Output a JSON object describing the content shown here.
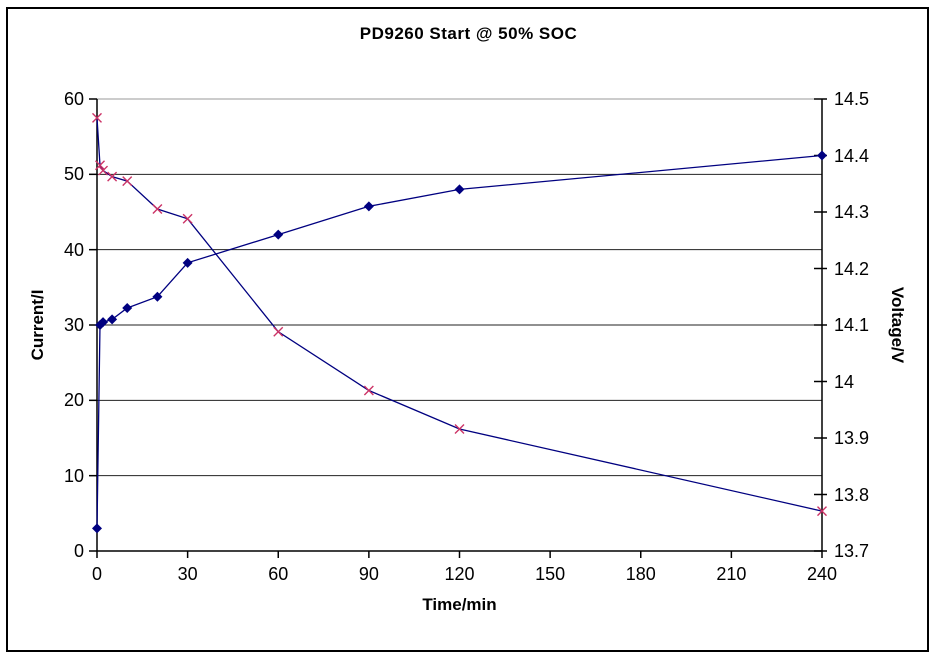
{
  "title": "PD9260 Start @ 50% SOC",
  "colors": {
    "line": "#000080",
    "diamond_marker": "#000080",
    "x_marker": "#cc3366",
    "gridline": "#222222",
    "top_gridline": "#999999",
    "axis": "#000000",
    "background": "#ffffff"
  },
  "chart_data": {
    "type": "line",
    "title": "PD9260 Start @ 50% SOC",
    "xlabel": "Time/min",
    "ylabel_left": "Current/I",
    "ylabel_right": "Voltage/V",
    "xlim": [
      0,
      240
    ],
    "x_ticks": [
      0,
      30,
      60,
      90,
      120,
      150,
      180,
      210,
      240
    ],
    "ylim_left": [
      0,
      60
    ],
    "y_ticks_left": [
      0,
      10,
      20,
      30,
      40,
      50,
      60
    ],
    "ylim_right": [
      13.7,
      14.5
    ],
    "y_ticks_right": [
      "13.7",
      "13.8",
      "13.9",
      "14",
      "14.1",
      "14.2",
      "14.3",
      "14.4",
      "14.5"
    ],
    "grid": "horizontal-only",
    "legend": "none",
    "series": [
      {
        "name": "Voltage",
        "axis": "right",
        "marker": "diamond",
        "marker_color": "#000080",
        "line_color": "#000080",
        "points": [
          [
            0,
            13.74
          ],
          [
            1,
            14.1
          ],
          [
            2,
            14.105
          ],
          [
            5,
            14.11
          ],
          [
            10,
            14.13
          ],
          [
            20,
            14.15
          ],
          [
            30,
            14.21
          ],
          [
            60,
            14.26
          ],
          [
            90,
            14.31
          ],
          [
            120,
            14.34
          ],
          [
            240,
            14.4
          ]
        ]
      },
      {
        "name": "Current",
        "axis": "left",
        "marker": "x",
        "marker_color": "#cc3366",
        "line_color": "#000080",
        "points": [
          [
            0,
            57.5
          ],
          [
            1,
            51.2
          ],
          [
            2,
            50.5
          ],
          [
            5,
            49.7
          ],
          [
            10,
            49.1
          ],
          [
            20,
            45.4
          ],
          [
            30,
            44.1
          ],
          [
            60,
            29.1
          ],
          [
            90,
            21.3
          ],
          [
            120,
            16.2
          ],
          [
            240,
            5.3
          ]
        ]
      }
    ]
  }
}
